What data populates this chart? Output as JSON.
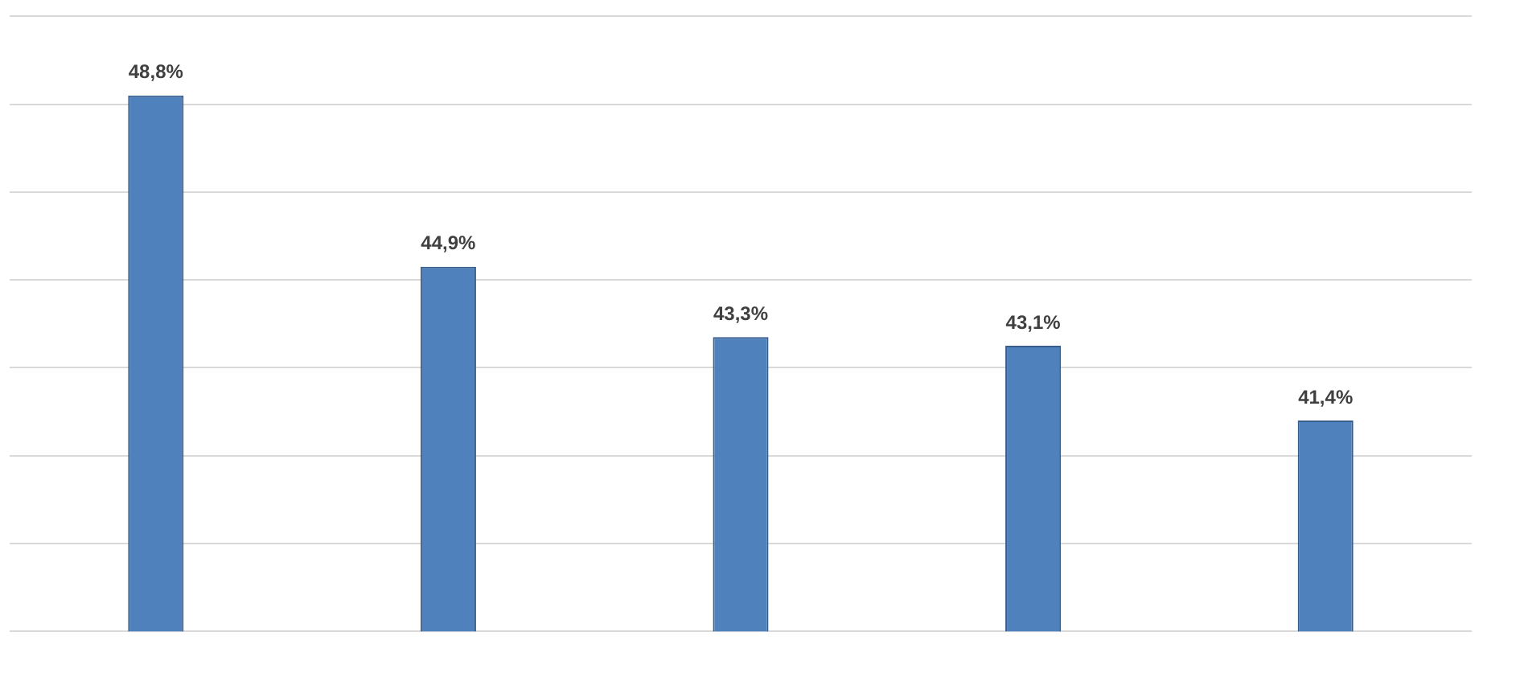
{
  "chart_data": {
    "type": "bar",
    "categories": [
      null,
      null,
      null,
      null,
      null
    ],
    "values": [
      48.8,
      44.9,
      43.3,
      43.1,
      41.4
    ],
    "value_labels": [
      "48,8%",
      "44,9%",
      "43,3%",
      "43,1%",
      "41,4%"
    ],
    "color": "#4f81bd",
    "ylim": [
      36.6,
      50.6
    ],
    "yticks": [
      {
        "value": 36.6,
        "label": null
      },
      {
        "value": 38.6,
        "label": null
      },
      {
        "value": 40.6,
        "label": null
      },
      {
        "value": 42.6,
        "label": null
      },
      {
        "value": 44.6,
        "label": null
      },
      {
        "value": 46.6,
        "label": null
      },
      {
        "value": 48.6,
        "label": null
      },
      {
        "value": 50.6,
        "label": null
      }
    ],
    "grid": "y",
    "legend": false
  }
}
